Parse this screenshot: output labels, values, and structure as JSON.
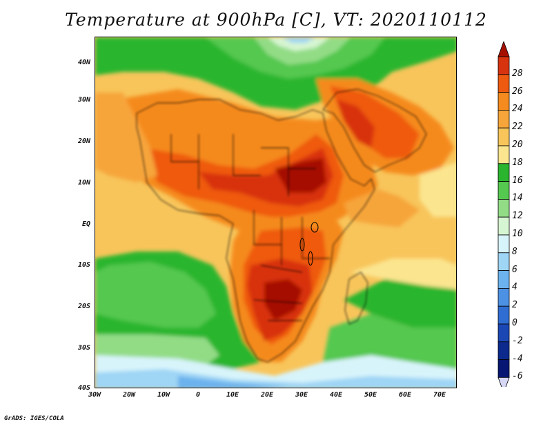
{
  "title": "Temperature at 900hPa [C], VT: 2020110112",
  "footer": "GrADS: IGES/COLA",
  "map": {
    "variable": "Temperature at 900hPa",
    "units": "C",
    "valid_time": "2020110112",
    "lat_ticks": [
      "40N",
      "30N",
      "20N",
      "10N",
      "EQ",
      "10S",
      "20S",
      "30S",
      "40S"
    ],
    "lon_ticks": [
      "30W",
      "20W",
      "10W",
      "0",
      "10E",
      "20E",
      "30E",
      "40E",
      "50E",
      "60E",
      "70E"
    ],
    "lat_range": [
      -40,
      45
    ],
    "lon_range": [
      -30,
      75
    ]
  },
  "colorbar": {
    "levels": [
      "28",
      "26",
      "24",
      "22",
      "20",
      "18",
      "16",
      "14",
      "12",
      "10",
      "8",
      "6",
      "4",
      "2",
      "0",
      "-2",
      "-4",
      "-6"
    ],
    "colors": [
      "#a50f00",
      "#d8330f",
      "#ef5a11",
      "#f58a1e",
      "#f6a53a",
      "#f8c55b",
      "#fbe58f",
      "#2bb52f",
      "#55c84f",
      "#93dc86",
      "#d6f5d2",
      "#d8f4fb",
      "#9fd5f5",
      "#6cb2ee",
      "#4d91e4",
      "#2f6dd2",
      "#1b47b5",
      "#0c2a8e",
      "#061672",
      "#d6d6f5"
    ]
  }
}
